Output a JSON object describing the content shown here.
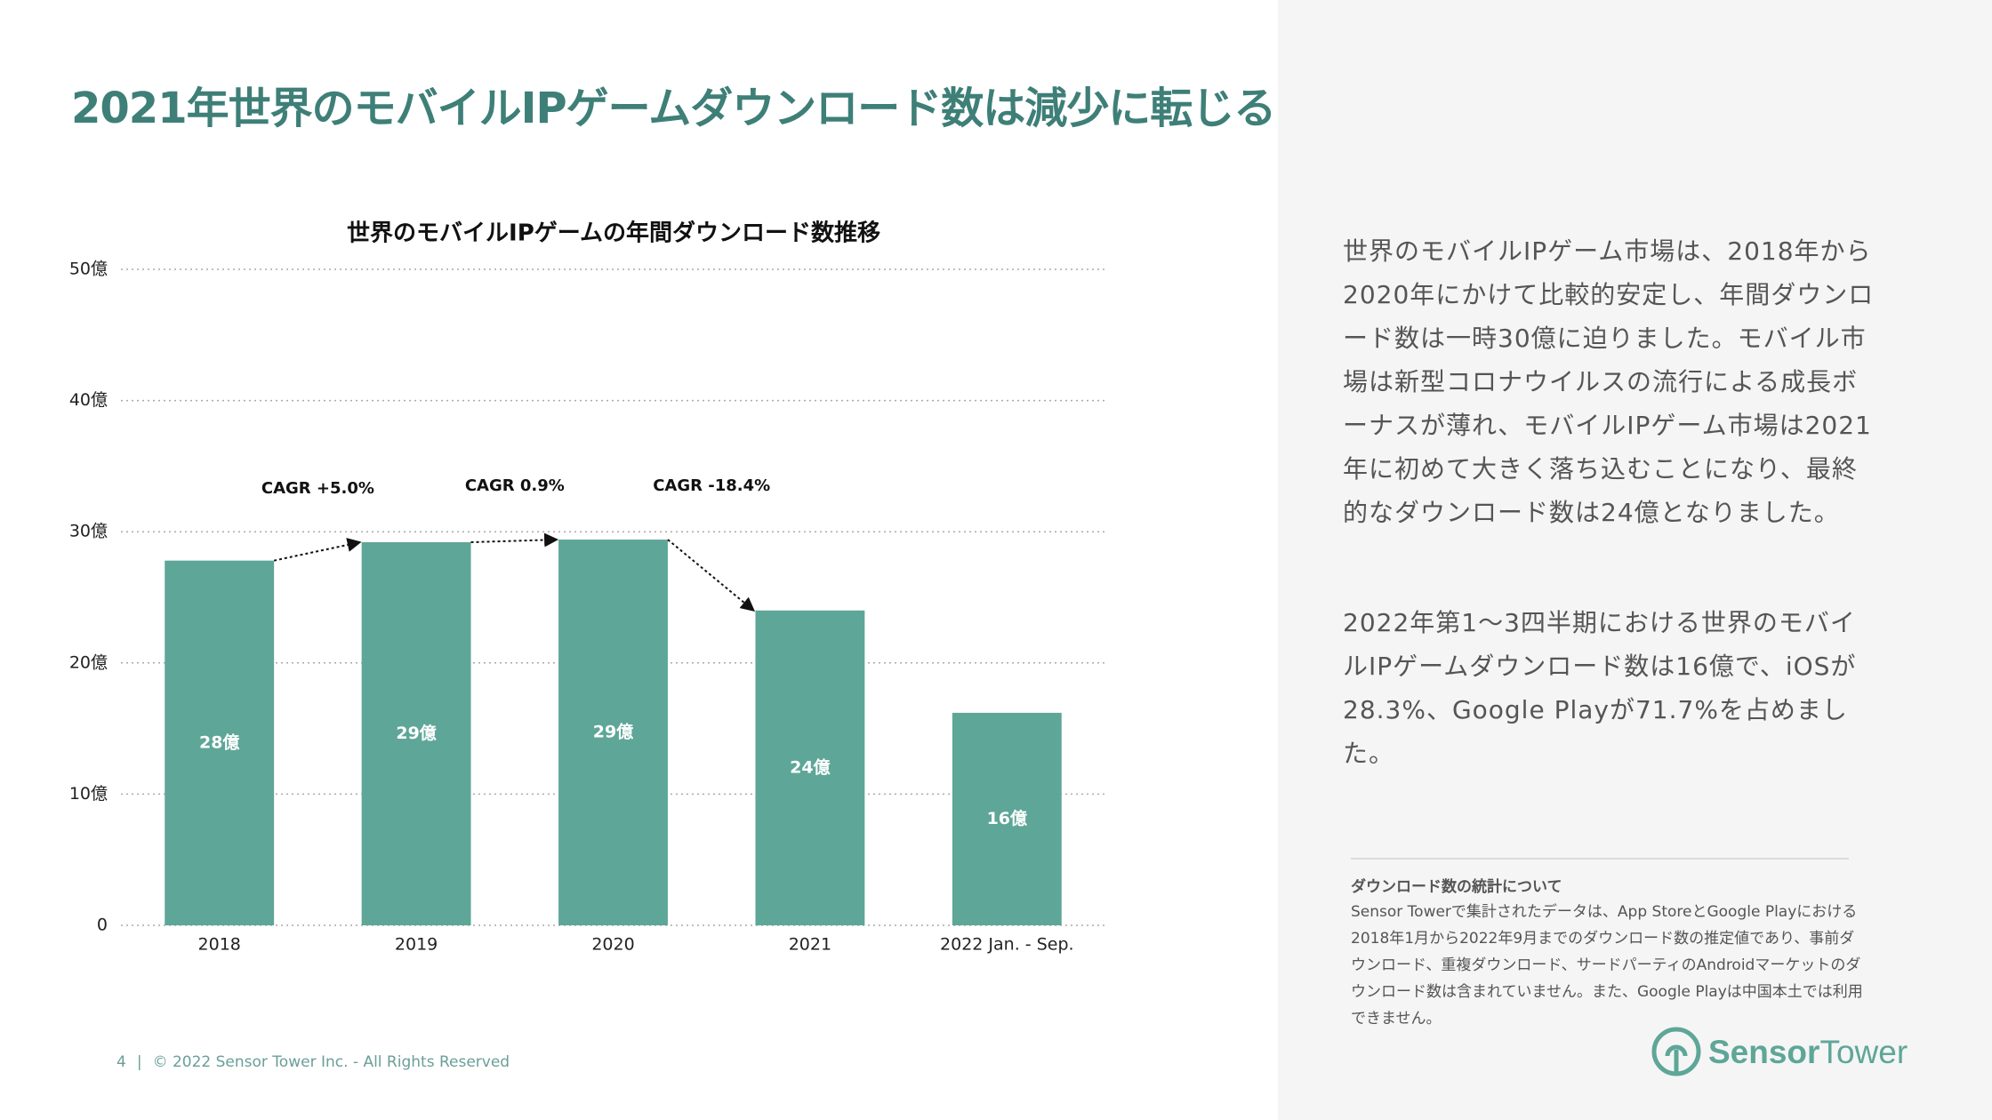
{
  "title": "2021年世界のモバイルIPゲームダウンロード数は減少に転じる",
  "chart_data": {
    "type": "bar",
    "title": "世界のモバイルIPゲームの年間ダウンロード数推移",
    "categories": [
      "2018",
      "2019",
      "2020",
      "2021",
      "2022 Jan. - Sep."
    ],
    "values": [
      27.8,
      29.2,
      29.4,
      24.0,
      16.2
    ],
    "value_labels": [
      "28億",
      "29億",
      "29億",
      "24億",
      "16億"
    ],
    "color": "#5ea698",
    "ylim": [
      0,
      50
    ],
    "yticks": [
      0,
      {
        "value": 10,
        "label": "10億"
      },
      {
        "value": 20,
        "label": "20億"
      },
      {
        "value": 30,
        "label": "30億"
      },
      {
        "value": 40,
        "label": "40億"
      },
      {
        "value": 50,
        "label": "50億"
      }
    ],
    "grid": true,
    "annotations": [
      "CAGR +5.0%",
      "CAGR 0.9%",
      "CAGR -18.4%"
    ]
  },
  "body": [
    "世界のモバイルIPゲーム市場は、2018年から2020年にかけて比較的安定し、年間ダウンロード数は一時30億に迫りました。モバイル市場は新型コロナウイルスの流行による成長ボーナスが薄れ、モバイルIPゲーム市場は2021年に初めて大きく落ち込むことになり、最終的なダウンロード数は24億となりました。",
    "2022年第1～3四半期における世界のモバイルIPゲームダウンロード数は16億で、iOSが28.3%、Google Playが71.7%を占めました。"
  ],
  "note": {
    "title": "ダウンロード数の統計について",
    "text": "Sensor Towerで集計されたデータは、App StoreとGoogle Playにおける2018年1月から2022年9月までのダウンロード数の推定値であり、事前ダウンロード、重複ダウンロード、サードパーティのAndroidマーケットのダウンロード数は含まれていません。また、Google Playは中国本土では利用できません。"
  },
  "footer": {
    "page": "4",
    "separator": "|",
    "copyright": "© 2022 Sensor Tower Inc. - All Rights Reserved"
  },
  "logo": {
    "sensor": "Sensor",
    "tower": "Tower"
  }
}
